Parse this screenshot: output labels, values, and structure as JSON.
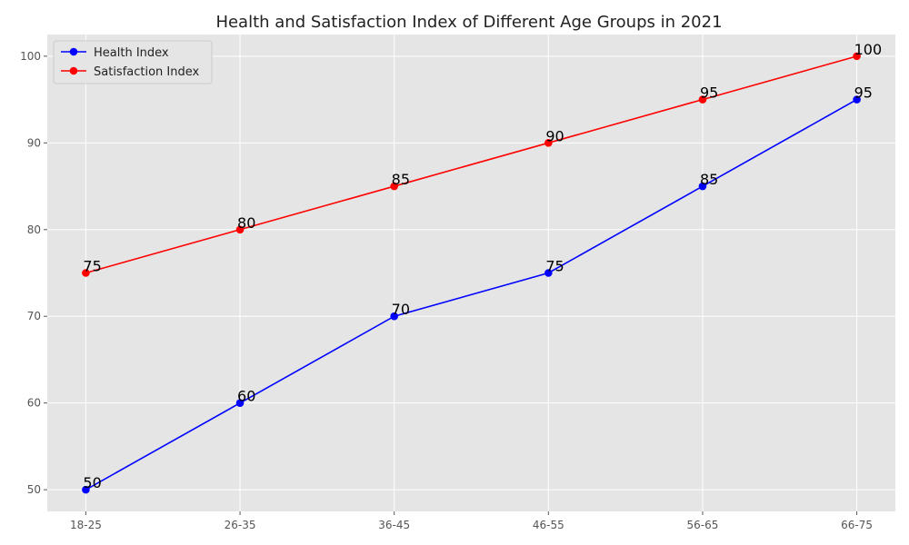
{
  "chart_data": {
    "type": "line",
    "title": "Health and Satisfaction Index of Different Age Groups in 2021",
    "xlabel": "",
    "ylabel": "",
    "categories": [
      "18-25",
      "26-35",
      "36-45",
      "46-55",
      "56-65",
      "66-75"
    ],
    "series": [
      {
        "name": "Health Index",
        "color": "#0000ff",
        "values": [
          50,
          60,
          70,
          75,
          85,
          95
        ]
      },
      {
        "name": "Satisfaction Index",
        "color": "#ff0000",
        "values": [
          75,
          80,
          85,
          90,
          95,
          100
        ]
      }
    ],
    "ylim": [
      47.5,
      102.5
    ],
    "yticks": [
      50,
      60,
      70,
      80,
      90,
      100
    ],
    "grid": true,
    "legend": "top-left",
    "background_color": "#e5e5e5",
    "grid_color": "#ffffff"
  }
}
